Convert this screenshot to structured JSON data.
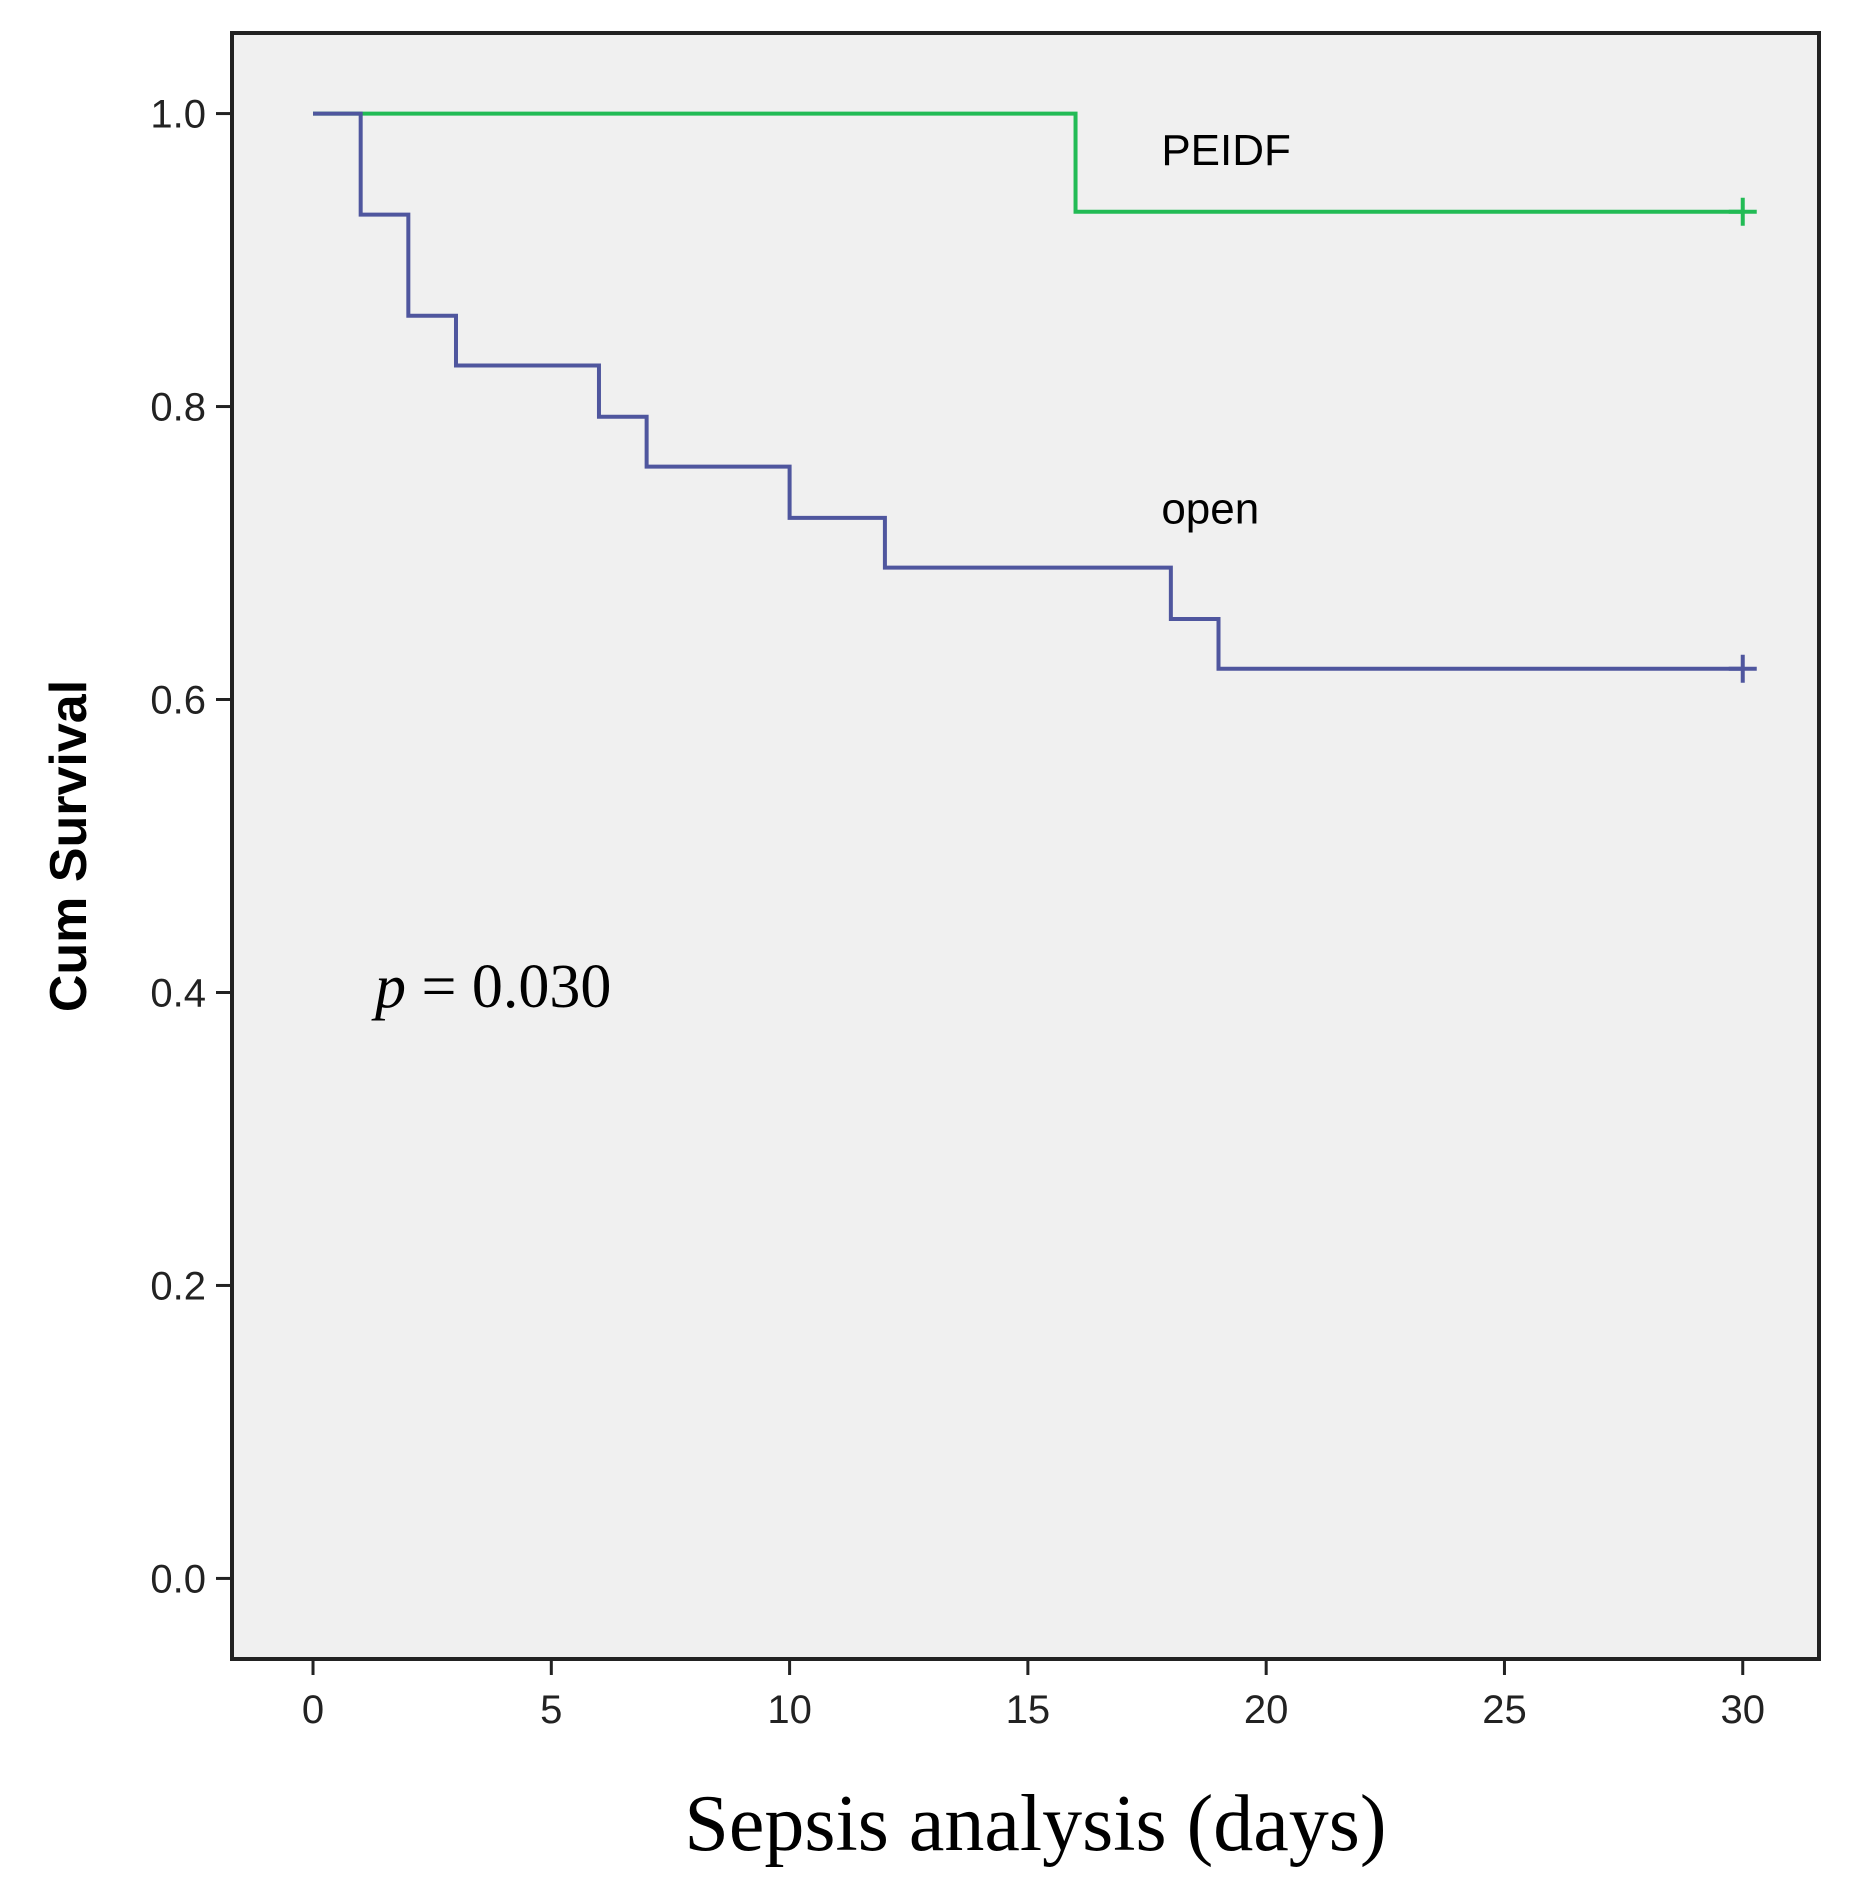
{
  "chart_data": {
    "type": "line",
    "subtype": "kaplan-meier-step",
    "title": "",
    "xlabel": "Sepsis analysis (days)",
    "ylabel": "Cum Survival",
    "xlim": [
      -1.7,
      31.6
    ],
    "ylim": [
      -0.055,
      1.055
    ],
    "x_ticks": [
      0,
      5,
      10,
      15,
      20,
      25,
      30
    ],
    "x_tick_labels": [
      "0",
      "5",
      "10",
      "15",
      "20",
      "25",
      "30"
    ],
    "y_ticks": [
      0.0,
      0.2,
      0.4,
      0.6,
      0.8,
      1.0
    ],
    "y_tick_labels": [
      "0.0",
      "0.2",
      "0.4",
      "0.6",
      "0.8",
      "1.0"
    ],
    "grid": false,
    "legend": "none",
    "annotations": [
      {
        "text_italic": "p",
        "text": " = 0.030",
        "x": 1.3,
        "y": 0.39
      }
    ],
    "series": [
      {
        "name": "PEIDF",
        "color": "#22bb55",
        "label_x": 17.8,
        "label_y": 0.965,
        "x": [
          0,
          16,
          30
        ],
        "y": [
          1.0,
          0.933,
          0.933
        ],
        "censored": [
          {
            "x": 30,
            "y": 0.933
          }
        ]
      },
      {
        "name": "open",
        "color": "#4f569e",
        "label_x": 17.8,
        "label_y": 0.72,
        "x": [
          0,
          1,
          2,
          3,
          6,
          7,
          10,
          12,
          18,
          19,
          30
        ],
        "y": [
          1.0,
          0.931,
          0.862,
          0.828,
          0.793,
          0.759,
          0.724,
          0.69,
          0.655,
          0.621,
          0.621
        ],
        "censored": [
          {
            "x": 30,
            "y": 0.621
          }
        ]
      }
    ]
  }
}
